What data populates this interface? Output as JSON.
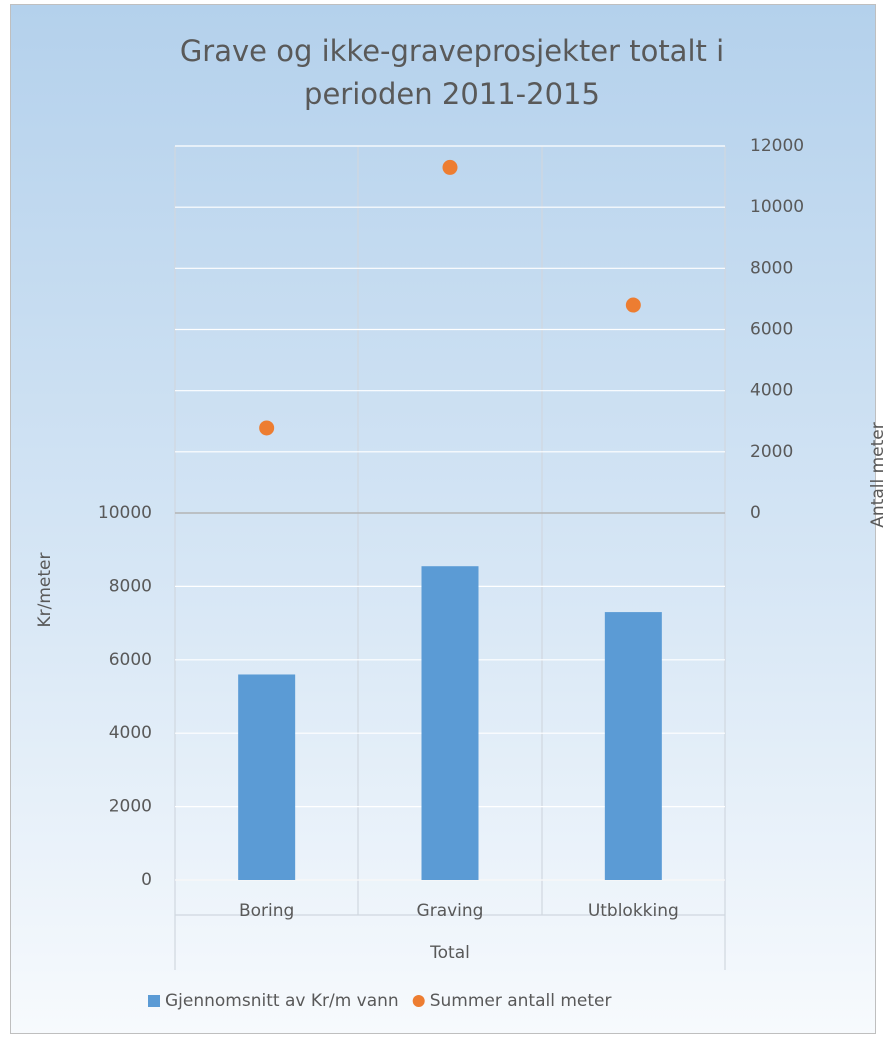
{
  "chart_data": {
    "type": "bar",
    "title": "Grave og ikke-graveprosjekter totalt i perioden 2011-2015",
    "categories": [
      "Boring",
      "Graving",
      "Utblokking"
    ],
    "category_group": "Total",
    "ylabel": "Kr/meter",
    "y2label": "Antall meter",
    "series": [
      {
        "name": "Gjennomsnitt av Kr/m vann",
        "color": "#5b9bd5",
        "type": "bar",
        "values": [
          5600,
          8550,
          7300
        ]
      },
      {
        "name": "Summer antall meter",
        "color": "#ed7d31",
        "type": "scatter",
        "axis": "y2",
        "values": [
          2780,
          11300,
          6800
        ]
      }
    ],
    "ylim": [
      0,
      10000
    ],
    "yticks": [
      0,
      2000,
      4000,
      6000,
      8000,
      10000
    ],
    "y2lim": [
      0,
      12000
    ],
    "y2ticks": [
      0,
      2000,
      4000,
      6000,
      8000,
      10000,
      12000
    ],
    "grid": true,
    "legend": "bottom"
  }
}
